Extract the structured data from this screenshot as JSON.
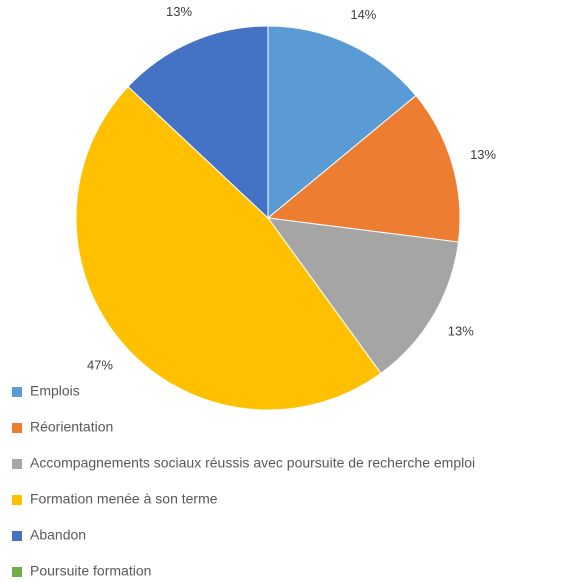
{
  "chart_data": {
    "type": "pie",
    "categories": [
      "Emplois",
      "Réorientation",
      "Accompagnements sociaux réussis avec poursuite de recherche emploi",
      "Formation menée à son terme",
      "Abandon",
      "Poursuite formation"
    ],
    "values": [
      14,
      13,
      13,
      47,
      13,
      0
    ],
    "value_labels": [
      "14%",
      "13%",
      "13%",
      "47%",
      "13%",
      null
    ],
    "colors": [
      "#5b9bd5",
      "#ed7d31",
      "#a5a5a5",
      "#ffc000",
      "#4472c4",
      "#70ad47"
    ],
    "legend": "bottom-left"
  }
}
